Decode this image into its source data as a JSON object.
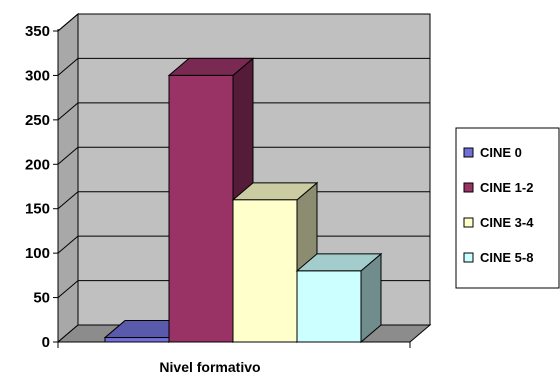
{
  "chart_data": {
    "type": "bar",
    "title": "",
    "xlabel": "Nivel formativo",
    "ylabel": "",
    "ylim": [
      0,
      350
    ],
    "yticks": [
      0,
      50,
      100,
      150,
      200,
      250,
      300,
      350
    ],
    "grid": true,
    "legend_position": "right",
    "three_d": true,
    "series": [
      {
        "name": "CINE 0",
        "value": 5,
        "color": "#7070d8"
      },
      {
        "name": "CINE 1-2",
        "value": 300,
        "color": "#993366"
      },
      {
        "name": "CINE 3-4",
        "value": 160,
        "color": "#ffffcc"
      },
      {
        "name": "CINE 5-8",
        "value": 80,
        "color": "#ccffff"
      }
    ]
  }
}
